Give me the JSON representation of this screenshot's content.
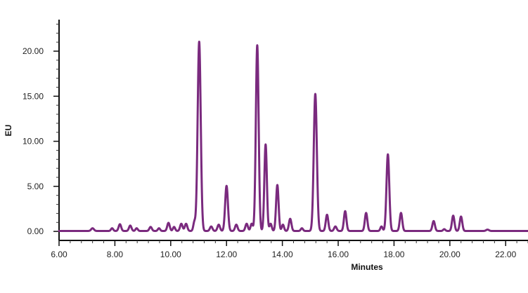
{
  "chart_data": {
    "type": "line",
    "title": "",
    "xlabel": "Minutes",
    "ylabel": "EU",
    "xlim": [
      6.0,
      22.8
    ],
    "ylim": [
      -1.0,
      23.5
    ],
    "x_ticks": [
      "6.00",
      "8.00",
      "10.00",
      "12.00",
      "14.00",
      "16.00",
      "18.00",
      "20.00",
      "22.00"
    ],
    "x_tick_values": [
      6,
      8,
      10,
      12,
      14,
      16,
      18,
      20,
      22
    ],
    "y_ticks": [
      "0.00",
      "5.00",
      "10.00",
      "15.00",
      "20.00"
    ],
    "y_tick_values": [
      0,
      5,
      10,
      15,
      20
    ],
    "grid": false,
    "line_color": "#7a2a7e",
    "baseline": 0.05,
    "series": [
      {
        "peaks": [
          {
            "rt": 7.2,
            "height": 0.3,
            "width": 0.05
          },
          {
            "rt": 7.9,
            "height": 0.3,
            "width": 0.04
          },
          {
            "rt": 8.18,
            "height": 0.75,
            "width": 0.045
          },
          {
            "rt": 8.55,
            "height": 0.6,
            "width": 0.045
          },
          {
            "rt": 8.78,
            "height": 0.3,
            "width": 0.04
          },
          {
            "rt": 9.28,
            "height": 0.45,
            "width": 0.045
          },
          {
            "rt": 9.58,
            "height": 0.3,
            "width": 0.04
          },
          {
            "rt": 9.92,
            "height": 0.9,
            "width": 0.045
          },
          {
            "rt": 10.12,
            "height": 0.45,
            "width": 0.04
          },
          {
            "rt": 10.38,
            "height": 0.8,
            "width": 0.045
          },
          {
            "rt": 10.55,
            "height": 0.8,
            "width": 0.045
          },
          {
            "rt": 10.85,
            "height": 1.0,
            "width": 0.04
          },
          {
            "rt": 11.02,
            "height": 21.0,
            "width": 0.055
          },
          {
            "rt": 11.45,
            "height": 0.5,
            "width": 0.045
          },
          {
            "rt": 11.72,
            "height": 0.7,
            "width": 0.045
          },
          {
            "rt": 12.0,
            "height": 5.0,
            "width": 0.05
          },
          {
            "rt": 12.35,
            "height": 0.7,
            "width": 0.045
          },
          {
            "rt": 12.72,
            "height": 0.8,
            "width": 0.045
          },
          {
            "rt": 12.9,
            "height": 0.8,
            "width": 0.04
          },
          {
            "rt": 13.1,
            "height": 20.6,
            "width": 0.05
          },
          {
            "rt": 13.4,
            "height": 9.6,
            "width": 0.045
          },
          {
            "rt": 13.58,
            "height": 0.8,
            "width": 0.04
          },
          {
            "rt": 13.82,
            "height": 5.1,
            "width": 0.045
          },
          {
            "rt": 14.02,
            "height": 0.7,
            "width": 0.04
          },
          {
            "rt": 14.28,
            "height": 1.35,
            "width": 0.045
          },
          {
            "rt": 14.7,
            "height": 0.3,
            "width": 0.04
          },
          {
            "rt": 15.18,
            "height": 15.2,
            "width": 0.055
          },
          {
            "rt": 15.6,
            "height": 1.8,
            "width": 0.045
          },
          {
            "rt": 15.9,
            "height": 0.5,
            "width": 0.045
          },
          {
            "rt": 16.25,
            "height": 2.2,
            "width": 0.045
          },
          {
            "rt": 17.0,
            "height": 2.0,
            "width": 0.045
          },
          {
            "rt": 17.55,
            "height": 0.5,
            "width": 0.04
          },
          {
            "rt": 17.78,
            "height": 8.5,
            "width": 0.05
          },
          {
            "rt": 18.25,
            "height": 2.0,
            "width": 0.045
          },
          {
            "rt": 19.42,
            "height": 1.1,
            "width": 0.045
          },
          {
            "rt": 19.8,
            "height": 0.2,
            "width": 0.04
          },
          {
            "rt": 20.12,
            "height": 1.7,
            "width": 0.045
          },
          {
            "rt": 20.4,
            "height": 1.6,
            "width": 0.045
          },
          {
            "rt": 21.35,
            "height": 0.15,
            "width": 0.05
          }
        ]
      }
    ]
  }
}
